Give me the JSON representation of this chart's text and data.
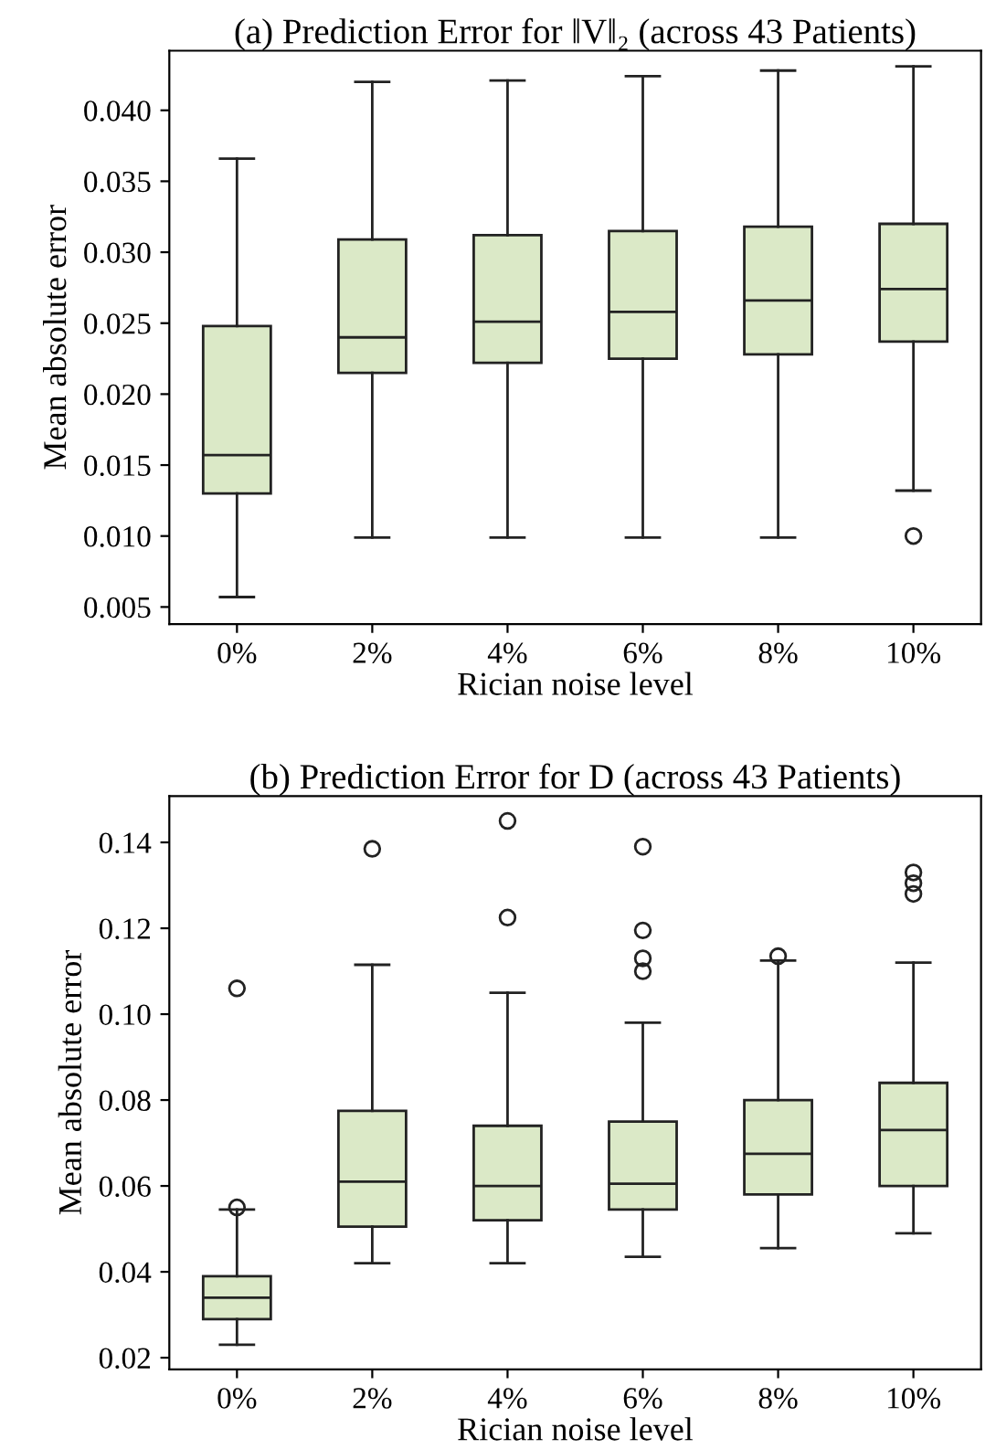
{
  "chart_data": [
    {
      "type": "box",
      "title": "(a) Prediction Error for ‖V‖₂ (across 43 Patients)",
      "xlabel": "Rician noise level",
      "ylabel": "Mean absolute error",
      "categories": [
        "0%",
        "2%",
        "4%",
        "6%",
        "8%",
        "10%"
      ],
      "color": "#dbe9c7",
      "ylim": [
        0.0038,
        0.0442
      ],
      "yticks": [
        {
          "value": 0.005,
          "label": "0.005"
        },
        {
          "value": 0.01,
          "label": "0.010"
        },
        {
          "value": 0.015,
          "label": "0.015"
        },
        {
          "value": 0.02,
          "label": "0.020"
        },
        {
          "value": 0.025,
          "label": "0.025"
        },
        {
          "value": 0.03,
          "label": "0.030"
        },
        {
          "value": 0.035,
          "label": "0.035"
        },
        {
          "value": 0.04,
          "label": "0.040"
        }
      ],
      "grid": false,
      "boxes": [
        {
          "low": 0.0057,
          "q1": 0.013,
          "median": 0.0157,
          "q3": 0.0248,
          "high": 0.0366
        },
        {
          "low": 0.0099,
          "q1": 0.0215,
          "median": 0.024,
          "q3": 0.0309,
          "high": 0.042
        },
        {
          "low": 0.0099,
          "q1": 0.0222,
          "median": 0.0251,
          "q3": 0.0312,
          "high": 0.0421
        },
        {
          "low": 0.0099,
          "q1": 0.0225,
          "median": 0.0258,
          "q3": 0.0315,
          "high": 0.0424
        },
        {
          "low": 0.0099,
          "q1": 0.0228,
          "median": 0.0266,
          "q3": 0.0318,
          "high": 0.0428
        },
        {
          "low": 0.0132,
          "q1": 0.0237,
          "median": 0.0274,
          "q3": 0.032,
          "high": 0.0431,
          "outliers": [
            0.01
          ]
        }
      ]
    },
    {
      "type": "box",
      "title": "(b) Prediction Error for D (across 43 Patients)",
      "xlabel": "Rician noise level",
      "ylabel": "Mean absolute error",
      "categories": [
        "0%",
        "2%",
        "4%",
        "6%",
        "8%",
        "10%"
      ],
      "color": "#dbe9c7",
      "ylim": [
        0.0173,
        0.1508
      ],
      "yticks": [
        {
          "value": 0.02,
          "label": "0.02"
        },
        {
          "value": 0.04,
          "label": "0.04"
        },
        {
          "value": 0.06,
          "label": "0.06"
        },
        {
          "value": 0.08,
          "label": "0.08"
        },
        {
          "value": 0.1,
          "label": "0.10"
        },
        {
          "value": 0.12,
          "label": "0.12"
        },
        {
          "value": 0.14,
          "label": "0.14"
        }
      ],
      "grid": false,
      "boxes": [
        {
          "low": 0.023,
          "q1": 0.029,
          "median": 0.034,
          "q3": 0.039,
          "high": 0.0545,
          "outliers": [
            0.055,
            0.106
          ]
        },
        {
          "low": 0.042,
          "q1": 0.0505,
          "median": 0.061,
          "q3": 0.0775,
          "high": 0.1115,
          "outliers": [
            0.1385
          ]
        },
        {
          "low": 0.042,
          "q1": 0.052,
          "median": 0.06,
          "q3": 0.074,
          "high": 0.105,
          "outliers": [
            0.1225,
            0.145
          ]
        },
        {
          "low": 0.0435,
          "q1": 0.0545,
          "median": 0.0605,
          "q3": 0.075,
          "high": 0.098,
          "outliers": [
            0.11,
            0.113,
            0.1195,
            0.139
          ]
        },
        {
          "low": 0.0455,
          "q1": 0.058,
          "median": 0.0675,
          "q3": 0.08,
          "high": 0.1125,
          "outliers": [
            0.1135
          ]
        },
        {
          "low": 0.049,
          "q1": 0.06,
          "median": 0.073,
          "q3": 0.084,
          "high": 0.112,
          "outliers": [
            0.128,
            0.1305,
            0.133
          ]
        }
      ]
    }
  ]
}
